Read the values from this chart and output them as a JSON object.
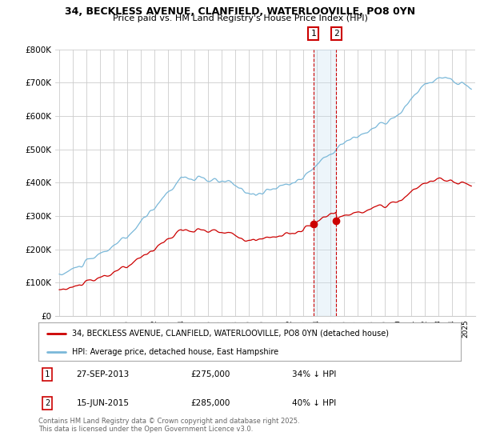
{
  "title_line1": "34, BECKLESS AVENUE, CLANFIELD, WATERLOOVILLE, PO8 0YN",
  "title_line2": "Price paid vs. HM Land Registry's House Price Index (HPI)",
  "hpi_color": "#7ab8d9",
  "price_color": "#cc0000",
  "background_color": "#ffffff",
  "grid_color": "#cccccc",
  "ylim": [
    0,
    800000
  ],
  "yticks": [
    0,
    100000,
    200000,
    300000,
    400000,
    500000,
    600000,
    700000,
    800000
  ],
  "legend_label_red": "34, BECKLESS AVENUE, CLANFIELD, WATERLOOVILLE, PO8 0YN (detached house)",
  "legend_label_blue": "HPI: Average price, detached house, East Hampshire",
  "transaction1_date": "27-SEP-2013",
  "transaction1_price": "£275,000",
  "transaction1_hpi": "34% ↓ HPI",
  "transaction2_date": "15-JUN-2015",
  "transaction2_price": "£285,000",
  "transaction2_hpi": "40% ↓ HPI",
  "footer": "Contains HM Land Registry data © Crown copyright and database right 2025.\nThis data is licensed under the Open Government Licence v3.0.",
  "marker1_year": 2013.75,
  "marker1_price": 275000,
  "marker2_year": 2015.45,
  "marker2_price": 285000,
  "vline_color": "#cc0000",
  "span_color": "#c5dff0"
}
